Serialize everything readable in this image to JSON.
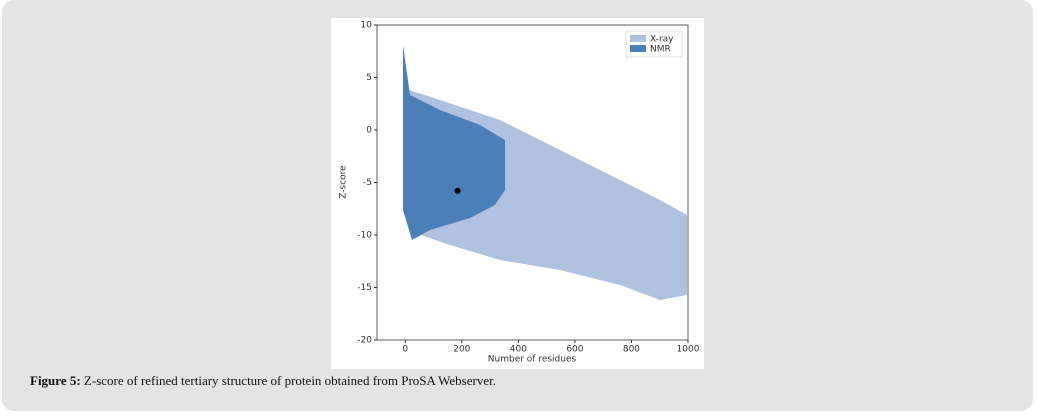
{
  "chart_data": {
    "type": "scatter",
    "xlabel": "Number of residues",
    "ylabel": "Z-score",
    "xlim": [
      -100,
      1000
    ],
    "xticks": [
      0,
      200,
      400,
      600,
      800,
      1000
    ],
    "ylim": [
      -20,
      10
    ],
    "yticks": [
      -20,
      -15,
      -10,
      -5,
      0,
      5,
      10
    ],
    "legend_position": "upper right",
    "legend": [
      {
        "name": "X-ray",
        "color": "#aec2e0"
      },
      {
        "name": "NMR",
        "color": "#4a7fb8"
      }
    ],
    "series": [
      {
        "color": "#000000",
        "x": [
          185
        ],
        "values": [
          -5.8
        ]
      }
    ]
  },
  "caption": {
    "label": "Figure 5:",
    "text": " Z-score of refined tertiary structure of protein obtained from ProSA Webserver."
  }
}
